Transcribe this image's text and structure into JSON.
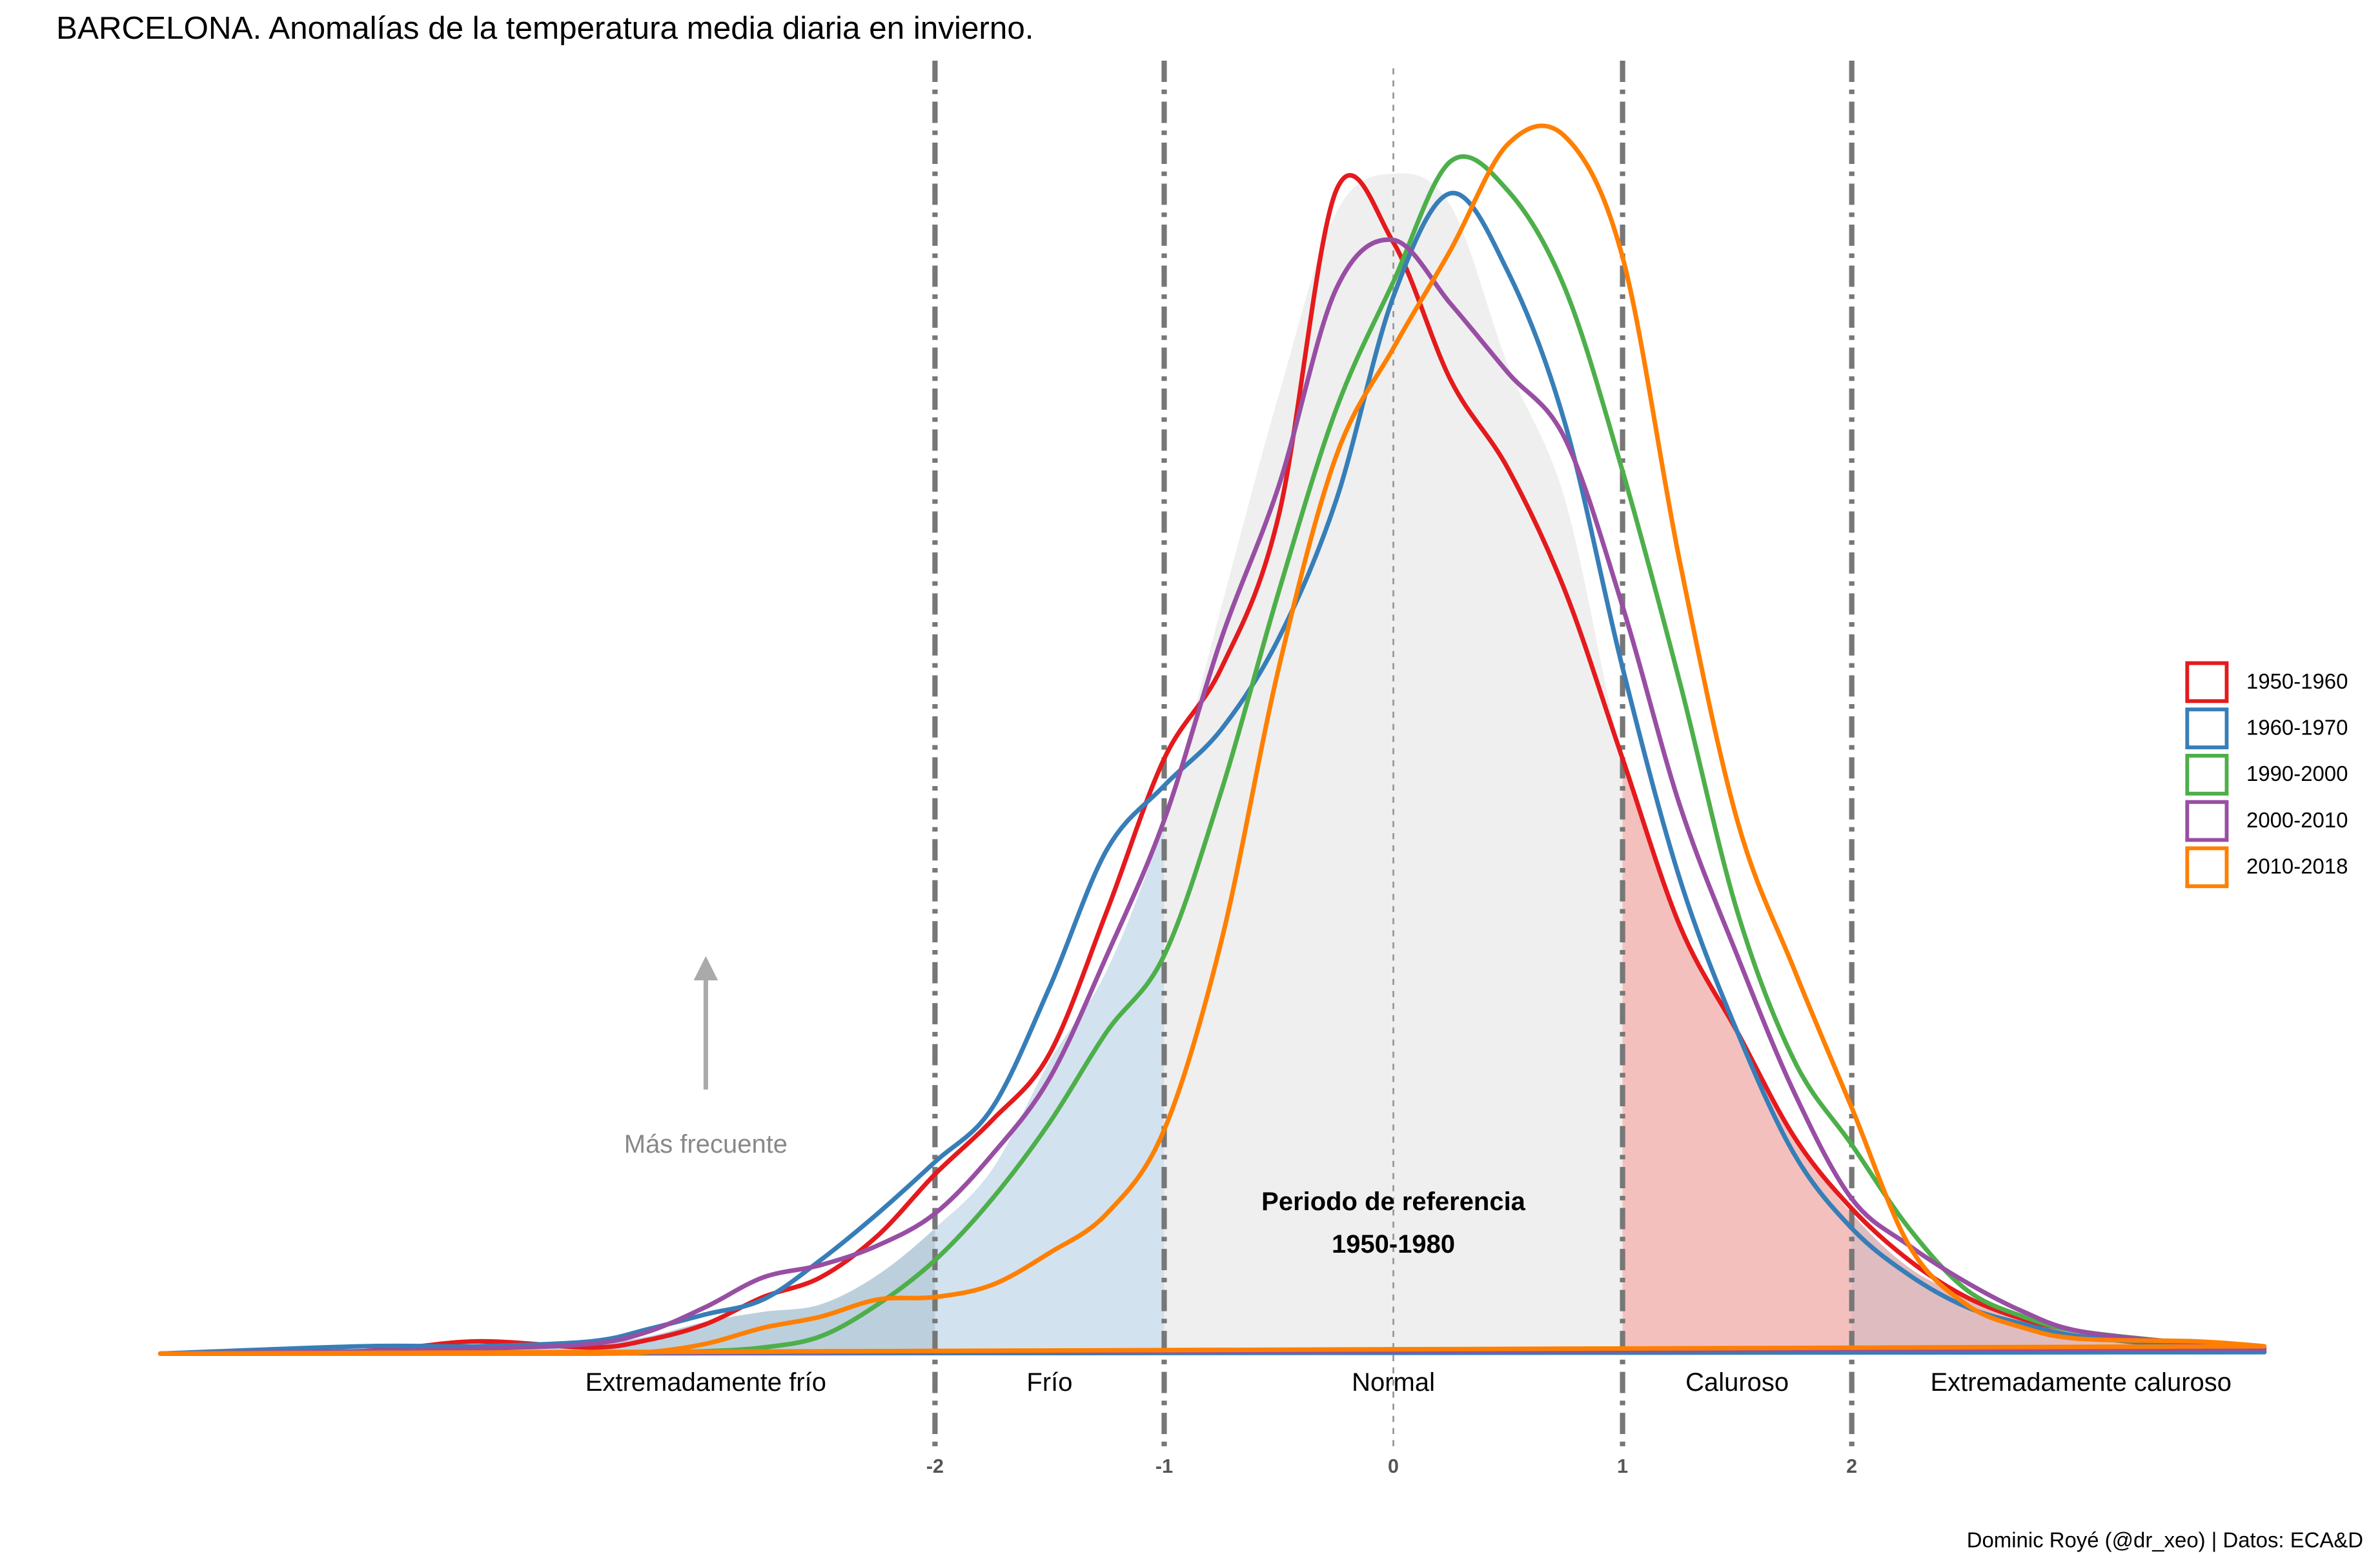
{
  "chart_data": {
    "type": "density",
    "title": "BARCELONA. Anomalías de la temperatura media diaria en invierno.",
    "caption": "Dominic Royé (@dr_xeo) | Datos: ECA&D",
    "x": [
      -5.38,
      -4.5,
      -4,
      -3.5,
      -3.25,
      -3,
      -2.75,
      -2.5,
      -2.25,
      -2,
      -1.75,
      -1.5,
      -1.25,
      -1,
      -0.75,
      -0.5,
      -0.25,
      0,
      0.25,
      0.5,
      0.75,
      1,
      1.25,
      1.5,
      1.75,
      2,
      2.25,
      2.5,
      2.75,
      3,
      3.5,
      3.8
    ],
    "xlim": [
      -5.38,
      3.8
    ],
    "ylim": [
      0,
      0.5
    ],
    "xticks": [
      -2,
      -1,
      0,
      1,
      2
    ],
    "thresholds": [
      -2,
      -1,
      1,
      2
    ],
    "bands": [
      "Extremadamente frío",
      "Frío",
      "Normal",
      "Caluroso",
      "Extremadamente caluroso"
    ],
    "band_colors": [
      "#bccfdc",
      "#d3e2ef",
      "#efefef",
      "#f4c0be",
      "#dfbcbf"
    ],
    "reference": {
      "label": [
        "Periodo de referencia",
        "1950-1980"
      ],
      "values": [
        0,
        0.001,
        0.002,
        0.004,
        0.007,
        0.013,
        0.017,
        0.02,
        0.032,
        0.051,
        0.075,
        0.119,
        0.156,
        0.217,
        0.304,
        0.39,
        0.464,
        0.48,
        0.467,
        0.402,
        0.347,
        0.242,
        0.174,
        0.131,
        0.088,
        0.057,
        0.035,
        0.023,
        0.014,
        0.009,
        0.004,
        0.001
      ]
    },
    "annotation": "Más frecuente",
    "legend_position": "right",
    "series": [
      {
        "name": "1950-1960",
        "color": "#e41a1c",
        "values": [
          0,
          0.001,
          0.005,
          0.0025,
          0.0056,
          0.012,
          0.023,
          0.031,
          0.048,
          0.073,
          0.095,
          0.122,
          0.18,
          0.242,
          0.279,
          0.341,
          0.473,
          0.452,
          0.396,
          0.36,
          0.31,
          0.242,
          0.174,
          0.131,
          0.088,
          0.059,
          0.038,
          0.023,
          0.014,
          0.009,
          0.0025,
          0.001
        ]
      },
      {
        "name": "1960-1970",
        "color": "#377eb8",
        "values": [
          0,
          0.003,
          0.003,
          0.005,
          0.01,
          0.016,
          0.022,
          0.038,
          0.057,
          0.078,
          0.1,
          0.149,
          0.205,
          0.231,
          0.254,
          0.291,
          0.347,
          0.43,
          0.472,
          0.44,
          0.378,
          0.279,
          0.193,
          0.131,
          0.081,
          0.051,
          0.032,
          0.019,
          0.012,
          0.007,
          0.0025,
          0.0006
        ]
      },
      {
        "name": "1990-2000",
        "color": "#4daf4a",
        "values": [
          0,
          0,
          0,
          0,
          0.0006,
          0.001,
          0.0025,
          0.007,
          0.02,
          0.038,
          0.063,
          0.094,
          0.131,
          0.162,
          0.229,
          0.31,
          0.384,
          0.436,
          0.485,
          0.473,
          0.433,
          0.359,
          0.273,
          0.18,
          0.119,
          0.085,
          0.051,
          0.026,
          0.015,
          0.009,
          0.004,
          0.002
        ]
      },
      {
        "name": "2000-2010",
        "color": "#984ea3",
        "values": [
          0,
          0.001,
          0.002,
          0.004,
          0.009,
          0.019,
          0.031,
          0.036,
          0.044,
          0.057,
          0.081,
          0.112,
          0.162,
          0.217,
          0.291,
          0.353,
          0.433,
          0.453,
          0.427,
          0.399,
          0.372,
          0.304,
          0.223,
          0.162,
          0.106,
          0.063,
          0.044,
          0.029,
          0.017,
          0.009,
          0.004,
          0.002
        ]
      },
      {
        "name": "2010-2018",
        "color": "#ff7f00",
        "values": [
          0,
          0,
          0,
          0,
          0.0006,
          0.004,
          0.0105,
          0.015,
          0.022,
          0.023,
          0.028,
          0.041,
          0.057,
          0.091,
          0.168,
          0.279,
          0.365,
          0.409,
          0.449,
          0.492,
          0.495,
          0.446,
          0.322,
          0.217,
          0.156,
          0.1,
          0.044,
          0.02,
          0.0105,
          0.006,
          0.005,
          0.003
        ]
      }
    ]
  }
}
